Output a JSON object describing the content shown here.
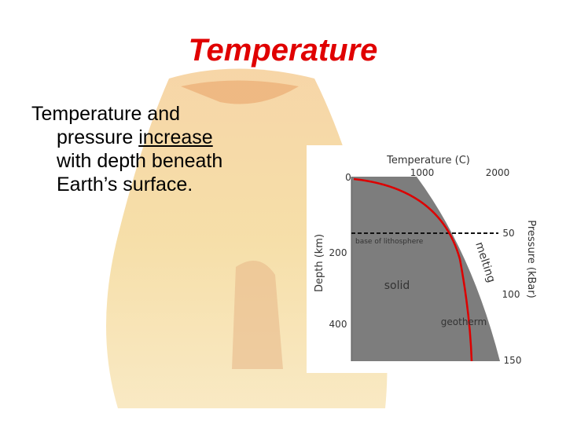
{
  "slide": {
    "title": "Temperature",
    "body": [
      "Temperature and",
      "pressure",
      "increase",
      "with depth beneath",
      "Earth’s surface."
    ]
  },
  "figure": {
    "top_axis_label": "Temperature (C)",
    "top_ticks": [
      "0",
      "1000",
      "2000"
    ],
    "left_axis_label": "Depth (km)",
    "left_ticks": [
      "200",
      "400"
    ],
    "right_axis_label": "Pressure (kBar)",
    "right_ticks": [
      "50",
      "100",
      "150"
    ],
    "annotations": {
      "lithosphere": "base of lithosphere",
      "melting": "melting",
      "solid": "solid",
      "geotherm": "geotherm"
    }
  }
}
